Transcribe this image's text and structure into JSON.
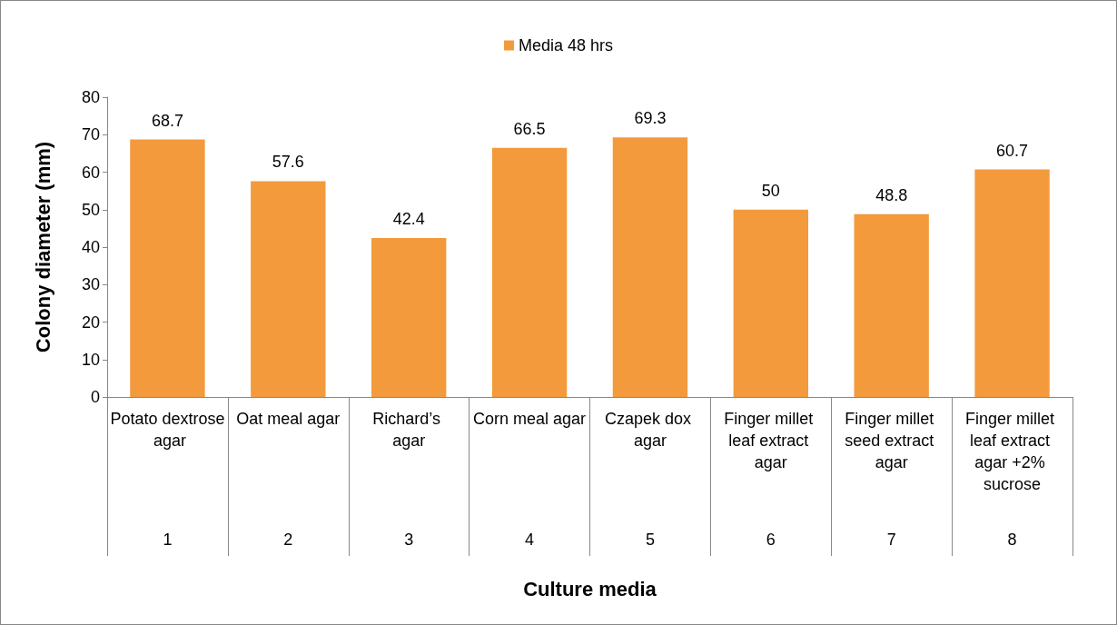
{
  "chart_data": {
    "type": "bar",
    "xlabel": "Culture media",
    "ylabel": "Colony diameter (mm)",
    "categories": [
      "Potato dextrose agar",
      "Oat meal agar",
      "Richard’s agar",
      "Corn meal agar",
      "Czapek dox agar",
      "Finger millet leaf extract agar",
      "Finger millet seed extract agar",
      "Finger millet leaf extract agar +2% sucrose"
    ],
    "series": [
      {
        "name": "Media 48 hrs",
        "color": "#f39a3c",
        "values": [
          68.7,
          57.6,
          42.4,
          66.5,
          69.3,
          50,
          48.8,
          60.7
        ]
      }
    ],
    "ylim": [
      0,
      80
    ],
    "yticks": [
      0,
      10,
      20,
      30,
      40,
      50,
      60,
      70,
      80
    ],
    "grid": false,
    "legend": "top",
    "data_labels": true,
    "annotations": [
      "1",
      "2",
      "3",
      "4",
      "5",
      "6",
      "7",
      "8"
    ]
  }
}
